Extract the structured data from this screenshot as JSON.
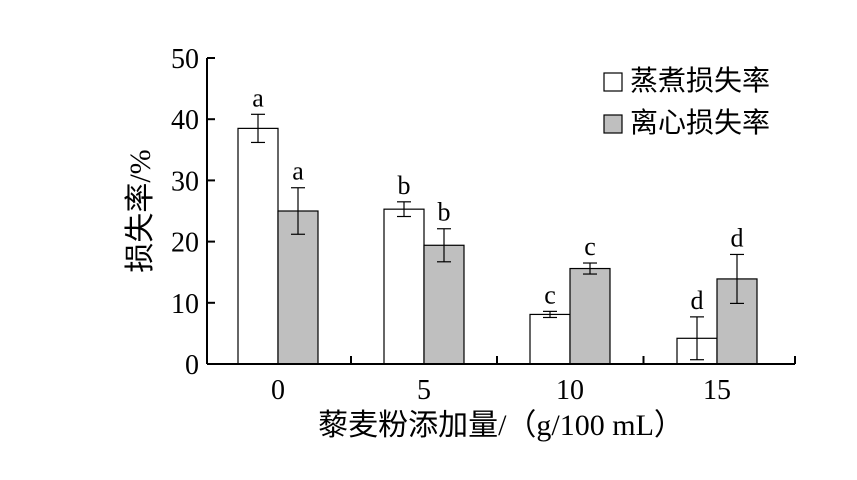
{
  "chart_data": {
    "type": "bar",
    "categories": [
      "0",
      "5",
      "10",
      "15"
    ],
    "series": [
      {
        "name": "蒸煮损失率",
        "color": "#ffffff",
        "values": [
          38.5,
          25.3,
          8.1,
          4.2
        ],
        "errors": [
          2.3,
          1.2,
          0.5,
          3.5
        ],
        "labels": [
          "a",
          "b",
          "c",
          "d"
        ]
      },
      {
        "name": "离心损失率",
        "color": "#bfbfbf",
        "values": [
          25.0,
          19.4,
          15.6,
          13.9
        ],
        "errors": [
          3.8,
          2.7,
          0.9,
          4.0
        ],
        "labels": [
          "a",
          "b",
          "c",
          "d"
        ]
      }
    ],
    "ylim": [
      0,
      50
    ],
    "yticks": [
      0,
      10,
      20,
      30,
      40,
      50
    ],
    "ylabel": "损失率/%",
    "xlabel": "藜麦粉添加量/（g/100 mL）",
    "legend_position": "top-right",
    "grid": false
  }
}
